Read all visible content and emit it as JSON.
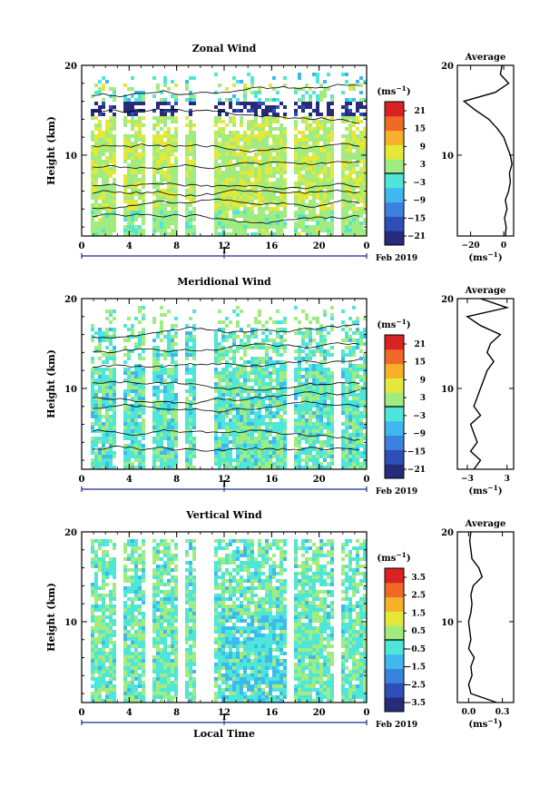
{
  "chart_data": [
    {
      "type": "heatmap",
      "title": "Zonal Wind",
      "ylabel": "Height (km)",
      "xlabel": "",
      "x_ticks": [
        "0",
        "4",
        "8",
        "12",
        "16",
        "20",
        "0"
      ],
      "x_date_label": "1",
      "x_month_label": "Feb 2019",
      "y_ticks": [
        "10",
        "20"
      ],
      "ylim": [
        1,
        20
      ],
      "colorbar": {
        "unit": "(ms",
        "unit_exp": "−1",
        "unit_close": ")",
        "tick_labels": [
          "21",
          "15",
          "9",
          "3",
          "−3",
          "−9",
          "−15",
          "−21"
        ],
        "range": [
          -24,
          24
        ]
      },
      "average": {
        "title": "Average",
        "xlabel": "(ms",
        "xlabel_exp": "−1",
        "xlabel_close": ")",
        "x_ticks": [
          "−20",
          "0"
        ],
        "xlim": [
          -28,
          6
        ],
        "y_ticks": [
          "10",
          "20"
        ],
        "height": [
          1,
          2,
          3,
          4,
          5,
          6,
          7,
          8,
          9,
          10,
          11,
          12,
          13,
          14,
          15,
          16,
          17,
          18,
          19,
          20
        ],
        "value": [
          1,
          1.5,
          0.5,
          2,
          1,
          3,
          4,
          3.5,
          5,
          4,
          2,
          0,
          -4,
          -9,
          -17,
          -24,
          -5,
          3,
          -2,
          -1
        ]
      }
    },
    {
      "type": "heatmap",
      "title": "Meridional Wind",
      "ylabel": "Height (km)",
      "xlabel": "",
      "x_ticks": [
        "0",
        "4",
        "8",
        "12",
        "16",
        "20",
        "0"
      ],
      "x_date_label": "1",
      "x_month_label": "Feb 2019",
      "y_ticks": [
        "10",
        "20"
      ],
      "ylim": [
        1,
        20
      ],
      "colorbar": {
        "unit": "(ms",
        "unit_exp": "−1",
        "unit_close": ")",
        "tick_labels": [
          "21",
          "15",
          "9",
          "3",
          "−3",
          "−9",
          "−15",
          "−21"
        ],
        "range": [
          -24,
          24
        ]
      },
      "average": {
        "title": "Average",
        "xlabel": "(ms",
        "xlabel_exp": "−1",
        "xlabel_close": ")",
        "x_ticks": [
          "−3",
          "3"
        ],
        "xlim": [
          -4.5,
          4
        ],
        "y_ticks": [
          "10",
          "20"
        ],
        "height": [
          1,
          2,
          3,
          4,
          5,
          6,
          7,
          8,
          9,
          10,
          11,
          12,
          13,
          14,
          15,
          16,
          17,
          18,
          19,
          20
        ],
        "value": [
          -2,
          -1,
          -2.5,
          -1.5,
          -2,
          -2.5,
          -1,
          -2,
          -1.5,
          -1,
          -0.5,
          0,
          1,
          0,
          0.5,
          2,
          -1,
          -3,
          3,
          -1
        ]
      }
    },
    {
      "type": "heatmap",
      "title": "Vertical Wind",
      "ylabel": "Height (km)",
      "xlabel": "Local Time",
      "x_ticks": [
        "0",
        "4",
        "8",
        "12",
        "16",
        "20",
        "0"
      ],
      "x_date_label": "1",
      "x_month_label": "Feb 2019",
      "y_ticks": [
        "10",
        "20"
      ],
      "ylim": [
        1,
        20
      ],
      "colorbar": {
        "unit": "(ms",
        "unit_exp": "−1",
        "unit_close": ")",
        "tick_labels": [
          "3.5",
          "2.5",
          "1.5",
          "0.5",
          "−0.5",
          "−1.5",
          "−2.5",
          "−3.5"
        ],
        "range": [
          -4,
          4
        ]
      },
      "average": {
        "title": "Average",
        "xlabel": "(ms",
        "xlabel_exp": "−1",
        "xlabel_close": ")",
        "x_ticks": [
          "0.0",
          "0.3"
        ],
        "xlim": [
          -0.1,
          0.4
        ],
        "y_ticks": [
          "10",
          "20"
        ],
        "height": [
          1,
          2,
          3,
          4,
          5,
          6,
          7,
          8,
          9,
          10,
          11,
          12,
          13,
          14,
          15,
          16,
          17,
          18,
          19,
          20
        ],
        "value": [
          0.25,
          0.02,
          0.0,
          0.03,
          0.02,
          0.05,
          0.0,
          0.02,
          0.01,
          0.0,
          0.02,
          0.03,
          0.02,
          0.04,
          0.12,
          0.09,
          0.03,
          0.02,
          0.01,
          0.02
        ]
      }
    }
  ],
  "colors": {
    "colormap": [
      "#262c7a",
      "#2e4fb8",
      "#3b82e0",
      "#3fb8ee",
      "#4ee6d8",
      "#a0ec80",
      "#e4e838",
      "#f6b02a",
      "#ef6a26",
      "#d92222"
    ],
    "accent_axis": "#1b2a8a"
  }
}
